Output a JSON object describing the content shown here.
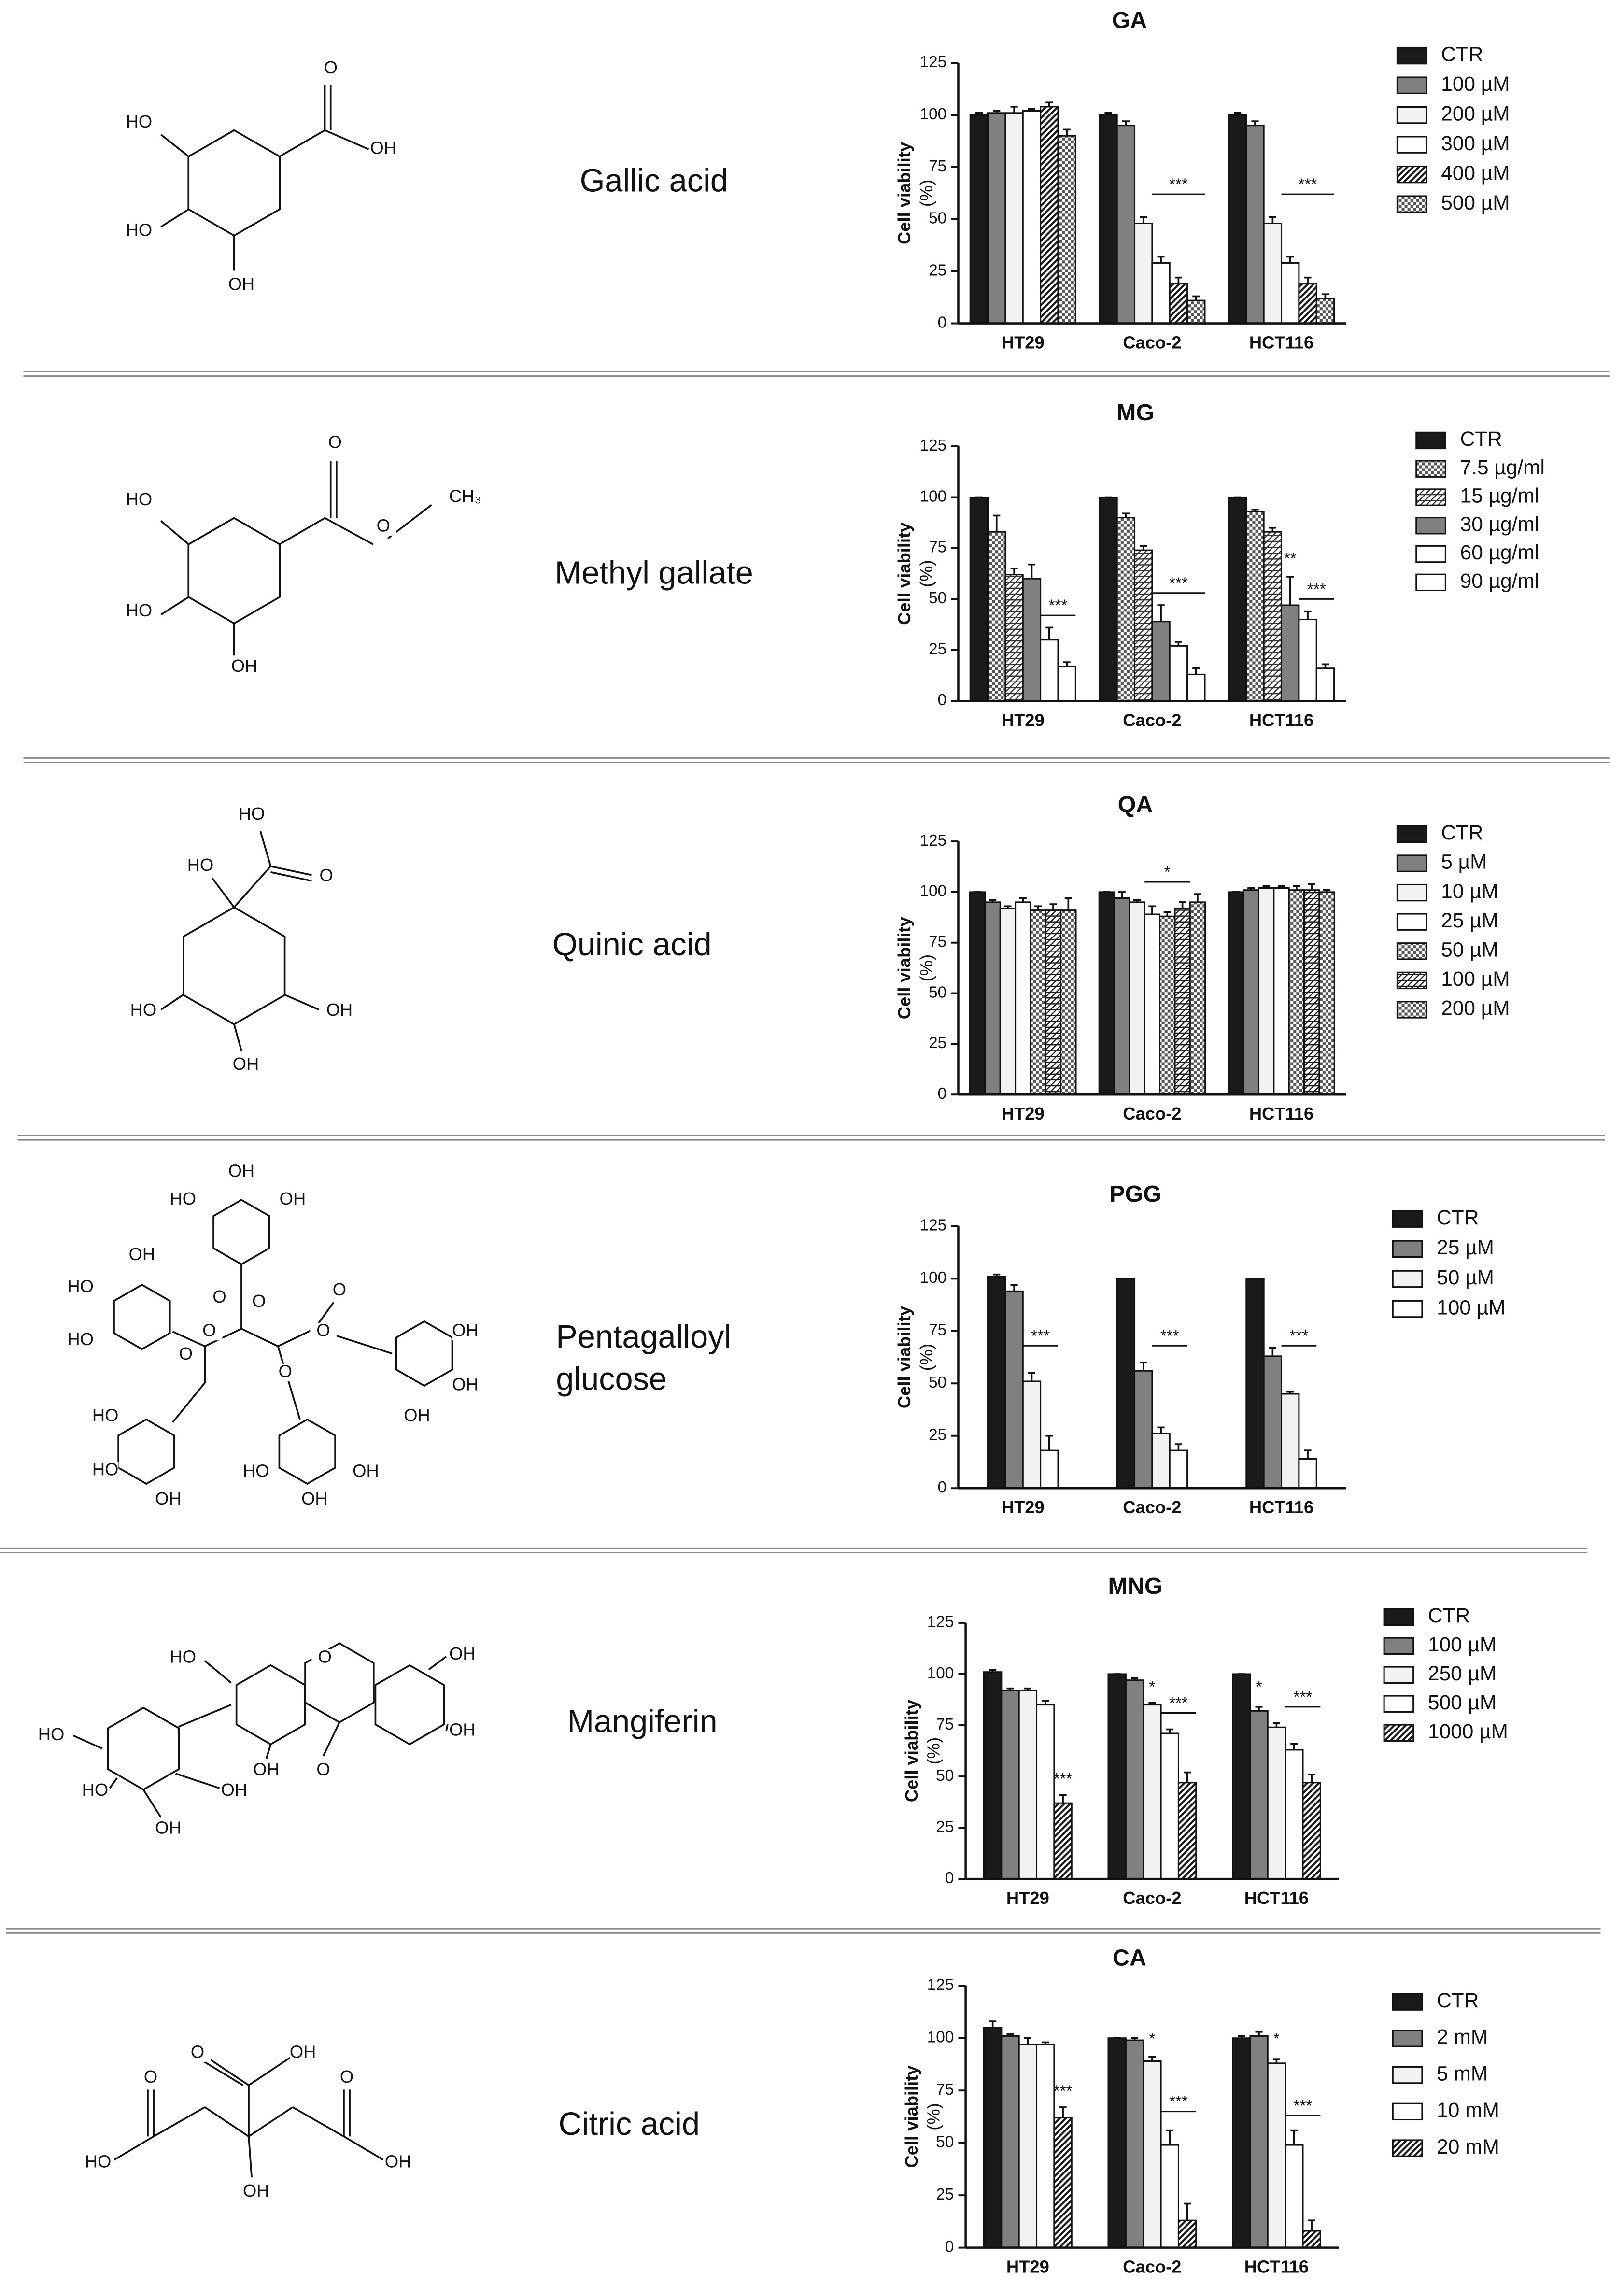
{
  "panels": [
    {
      "name": [
        "Gallic acid"
      ],
      "labels": [
        "O",
        "OH",
        "HO",
        "HO",
        "OH"
      ]
    },
    {
      "name": [
        "Methyl gallate"
      ],
      "labels": [
        "O",
        "O",
        "CH₃",
        "HO",
        "HO",
        "OH"
      ]
    },
    {
      "name": [
        "Quinic acid"
      ],
      "labels": [
        "HO",
        "HO",
        "O",
        "HO",
        "OH",
        "OH"
      ]
    },
    {
      "name": [
        "Pentagalloyl",
        "glucose"
      ],
      "labels": [
        "OH",
        "HO",
        "OH",
        "OH",
        "HO",
        "HO",
        "O",
        "O",
        "O",
        "O",
        "O",
        "O",
        "O",
        "OH",
        "OH",
        "OH",
        "HO",
        "HO",
        "OH",
        "HO",
        "OH",
        "OH"
      ]
    },
    {
      "name": [
        "Mangiferin"
      ],
      "labels": [
        "HO",
        "O",
        "OH",
        "OH",
        "OH",
        "O",
        "HO",
        "HO",
        "OH",
        "OH"
      ]
    },
    {
      "name": [
        "Citric acid"
      ],
      "labels": [
        "OH",
        "O",
        "O",
        "O",
        "HO",
        "OH",
        "OH"
      ]
    }
  ],
  "chart_data": [
    {
      "type": "bar",
      "title": "GA",
      "y_label": "Cell viability",
      "y_unit": "(%)",
      "categories": [
        "HT29",
        "Caco-2",
        "HCT116"
      ],
      "ylim": [
        0,
        125
      ],
      "yticks": [
        0,
        25,
        50,
        75,
        100,
        125
      ],
      "series": [
        {
          "name": "CTR",
          "color": "#1a1a1a",
          "pattern": "solid",
          "values": [
            100,
            100,
            100
          ],
          "errors": [
            1,
            1,
            1
          ]
        },
        {
          "name": "100 µM",
          "color": "#808080",
          "pattern": "solid",
          "values": [
            101,
            95,
            95
          ],
          "errors": [
            1,
            2,
            2
          ]
        },
        {
          "name": "200 µM",
          "color": "#f2f2f2",
          "pattern": "solid",
          "values": [
            101,
            48,
            48
          ],
          "errors": [
            3,
            3,
            3
          ]
        },
        {
          "name": "300 µM",
          "color": "#ffffff",
          "pattern": "solid",
          "values": [
            102,
            29,
            29
          ],
          "errors": [
            1,
            3,
            3
          ]
        },
        {
          "name": "400 µM",
          "color": "#1a1a1a",
          "pattern": "hatch",
          "values": [
            104,
            19,
            19
          ],
          "errors": [
            2,
            3,
            3
          ]
        },
        {
          "name": "500 µM",
          "color": "#555555",
          "pattern": "checker",
          "values": [
            90,
            11,
            12
          ],
          "errors": [
            3,
            2,
            2
          ]
        }
      ],
      "annotations": [
        "***",
        "***"
      ]
    },
    {
      "type": "bar",
      "title": "MG",
      "y_label": "Cell viability",
      "y_unit": "(%)",
      "categories": [
        "HT29",
        "Caco-2",
        "HCT116"
      ],
      "ylim": [
        0,
        125
      ],
      "yticks": [
        0,
        25,
        50,
        75,
        100,
        125
      ],
      "series": [
        {
          "name": "CTR",
          "color": "#1a1a1a",
          "pattern": "solid",
          "values": [
            100,
            100,
            100
          ],
          "errors": [
            0,
            0,
            0
          ]
        },
        {
          "name": "7.5 µg/ml",
          "color": "#555555",
          "pattern": "checker",
          "values": [
            83,
            90,
            93
          ],
          "errors": [
            8,
            2,
            1
          ]
        },
        {
          "name": "15 µg/ml",
          "color": "#333333",
          "pattern": "dense",
          "values": [
            62,
            74,
            83
          ],
          "errors": [
            3,
            2,
            2
          ]
        },
        {
          "name": "30 µg/ml",
          "color": "#808080",
          "pattern": "solid",
          "values": [
            60,
            39,
            47
          ],
          "errors": [
            7,
            8,
            14
          ]
        },
        {
          "name": "60 µg/ml",
          "color": "#ffffff",
          "pattern": "solid",
          "values": [
            30,
            27,
            40
          ],
          "errors": [
            6,
            2,
            4
          ]
        },
        {
          "name": "90 µg/ml",
          "color": "#ffffff",
          "pattern": "solid",
          "values": [
            17,
            13,
            16
          ],
          "errors": [
            2,
            3,
            2
          ]
        }
      ],
      "annotations": [
        "***",
        "***",
        "**",
        "***"
      ]
    },
    {
      "type": "bar",
      "title": "QA",
      "y_label": "Cell viability",
      "y_unit": "(%)",
      "categories": [
        "HT29",
        "Caco-2",
        "HCT116"
      ],
      "ylim": [
        0,
        125
      ],
      "yticks": [
        0,
        25,
        50,
        75,
        100,
        125
      ],
      "series": [
        {
          "name": "CTR",
          "color": "#1a1a1a",
          "pattern": "solid",
          "values": [
            100,
            100,
            100
          ],
          "errors": [
            0,
            0,
            0
          ]
        },
        {
          "name": "5 µM",
          "color": "#808080",
          "pattern": "solid",
          "values": [
            95,
            97,
            101
          ],
          "errors": [
            1,
            3,
            1
          ]
        },
        {
          "name": "10 µM",
          "color": "#f2f2f2",
          "pattern": "solid",
          "values": [
            92,
            95,
            102
          ],
          "errors": [
            1,
            1,
            1
          ]
        },
        {
          "name": "25 µM",
          "color": "#ffffff",
          "pattern": "solid",
          "values": [
            95,
            89,
            102
          ],
          "errors": [
            2,
            4,
            1
          ]
        },
        {
          "name": "50 µM",
          "color": "#555555",
          "pattern": "checker",
          "values": [
            91,
            88,
            101
          ],
          "errors": [
            2,
            2,
            2
          ]
        },
        {
          "name": "100 µM",
          "color": "#1a1a1a",
          "pattern": "dense",
          "values": [
            91,
            92,
            101
          ],
          "errors": [
            3,
            3,
            3
          ]
        },
        {
          "name": "200 µM",
          "color": "#555555",
          "pattern": "checker",
          "values": [
            91,
            95,
            100
          ],
          "errors": [
            6,
            4,
            1
          ]
        }
      ],
      "annotations": [
        "*"
      ]
    },
    {
      "type": "bar",
      "title": "PGG",
      "y_label": "Cell viability",
      "y_unit": "(%)",
      "categories": [
        "HT29",
        "Caco-2",
        "HCT116"
      ],
      "ylim": [
        0,
        125
      ],
      "yticks": [
        0,
        25,
        50,
        75,
        100,
        125
      ],
      "series": [
        {
          "name": "CTR",
          "color": "#1a1a1a",
          "pattern": "solid",
          "values": [
            101,
            100,
            100
          ],
          "errors": [
            1,
            0,
            0
          ]
        },
        {
          "name": "25 µM",
          "color": "#808080",
          "pattern": "solid",
          "values": [
            94,
            56,
            63
          ],
          "errors": [
            3,
            4,
            4
          ]
        },
        {
          "name": "50 µM",
          "color": "#f2f2f2",
          "pattern": "solid",
          "values": [
            51,
            26,
            45
          ],
          "errors": [
            4,
            3,
            1
          ]
        },
        {
          "name": "100 µM",
          "color": "#ffffff",
          "pattern": "solid",
          "values": [
            18,
            18,
            14
          ],
          "errors": [
            7,
            3,
            4
          ]
        }
      ],
      "annotations": [
        "***",
        "***",
        "***"
      ]
    },
    {
      "type": "bar",
      "title": "MNG",
      "y_label": "Cell viability",
      "y_unit": "(%)",
      "categories": [
        "HT29",
        "Caco-2",
        "HCT116"
      ],
      "ylim": [
        0,
        125
      ],
      "yticks": [
        0,
        25,
        50,
        75,
        100,
        125
      ],
      "series": [
        {
          "name": "CTR",
          "color": "#1a1a1a",
          "pattern": "solid",
          "values": [
            101,
            100,
            100
          ],
          "errors": [
            1,
            0,
            0
          ]
        },
        {
          "name": "100 µM",
          "color": "#808080",
          "pattern": "solid",
          "values": [
            92,
            97,
            82
          ],
          "errors": [
            1,
            1,
            2
          ]
        },
        {
          "name": "250 µM",
          "color": "#f2f2f2",
          "pattern": "solid",
          "values": [
            92,
            85,
            74
          ],
          "errors": [
            1,
            1,
            2
          ]
        },
        {
          "name": "500 µM",
          "color": "#ffffff",
          "pattern": "solid",
          "values": [
            85,
            71,
            63
          ],
          "errors": [
            2,
            2,
            3
          ]
        },
        {
          "name": "1000 µM",
          "color": "#1a1a1a",
          "pattern": "hatch",
          "values": [
            37,
            47,
            47
          ],
          "errors": [
            4,
            5,
            4
          ]
        }
      ],
      "annotations": [
        "***",
        "*",
        "***",
        "*",
        "***"
      ]
    },
    {
      "type": "bar",
      "title": "CA",
      "y_label": "Cell viability",
      "y_unit": "(%)",
      "categories": [
        "HT29",
        "Caco-2",
        "HCT116"
      ],
      "ylim": [
        0,
        125
      ],
      "yticks": [
        0,
        25,
        50,
        75,
        100,
        125
      ],
      "series": [
        {
          "name": "CTR",
          "color": "#1a1a1a",
          "pattern": "solid",
          "values": [
            105,
            100,
            100
          ],
          "errors": [
            3,
            0,
            1
          ]
        },
        {
          "name": "2 mM",
          "color": "#808080",
          "pattern": "solid",
          "values": [
            101,
            99,
            101
          ],
          "errors": [
            1,
            1,
            2
          ]
        },
        {
          "name": "5 mM",
          "color": "#f2f2f2",
          "pattern": "solid",
          "values": [
            97,
            89,
            88
          ],
          "errors": [
            3,
            2,
            2
          ]
        },
        {
          "name": "10 mM",
          "color": "#ffffff",
          "pattern": "solid",
          "values": [
            97,
            49,
            49
          ],
          "errors": [
            1,
            7,
            7
          ]
        },
        {
          "name": "20 mM",
          "color": "#1a1a1a",
          "pattern": "hatch",
          "values": [
            62,
            13,
            8
          ],
          "errors": [
            5,
            8,
            5
          ]
        }
      ],
      "annotations": [
        "***",
        "*",
        "***",
        "*",
        "***"
      ]
    }
  ]
}
